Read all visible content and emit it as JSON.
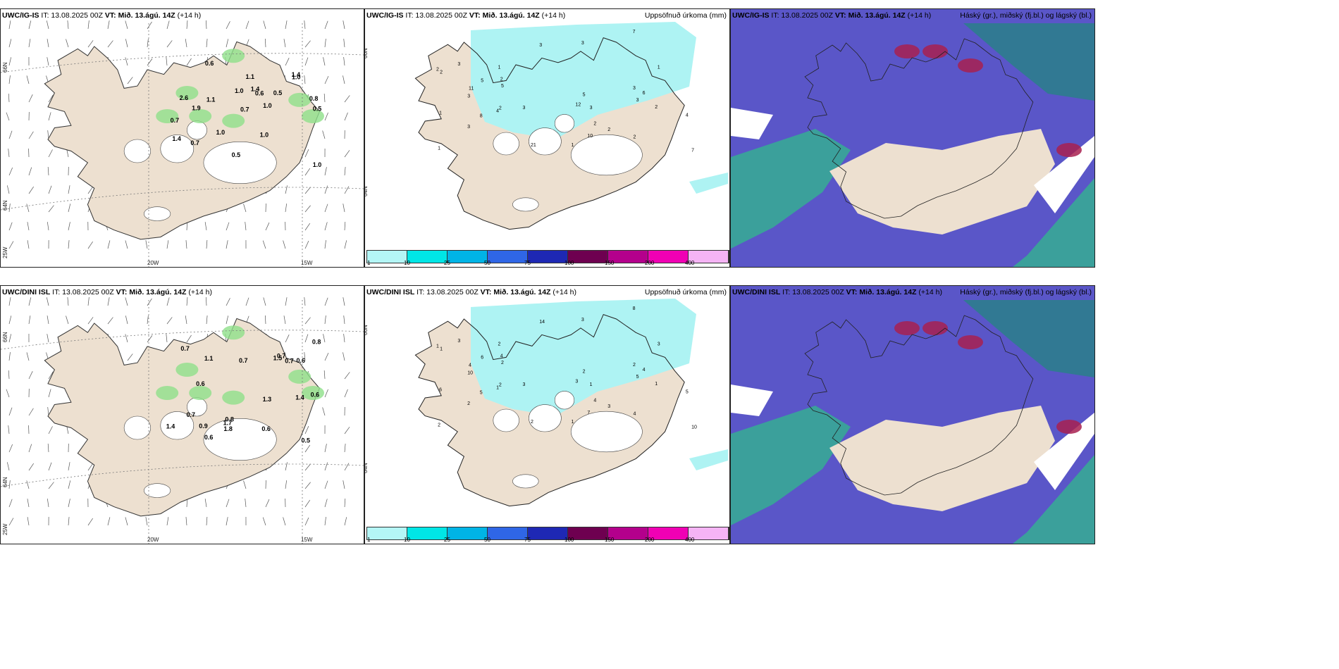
{
  "panels": [
    {
      "model": "UWC/IG-IS",
      "it": "IT: 13.08.2025 00Z",
      "vt_label": "VT:",
      "vt": "Mið. 13.ágú. 14Z",
      "lead": "(+14 h)",
      "type": "wind"
    },
    {
      "model": "UWC/IG-IS",
      "it": "IT: 13.08.2025 00Z",
      "vt_label": "VT:",
      "vt": "Mið. 13.ágú. 14Z",
      "lead": "(+14 h)",
      "type": "precip",
      "right_label": "Uppsöfnuð úrkoma (mm)"
    },
    {
      "model": "UWC/IG-IS",
      "it": "IT: 13.08.2025 00Z",
      "vt_label": "VT:",
      "vt": "Mið. 13.ágú. 14Z",
      "lead": "(+14 h)",
      "type": "cloud",
      "right_label": "Háský (gr.), miðský (fj.bl.) og lágský (bl.)"
    },
    {
      "model": "UWC/DINI ISL",
      "it": "IT: 13.08.2025 00Z",
      "vt_label": "VT:",
      "vt": "Mið. 13.ágú. 14Z",
      "lead": "(+14 h)",
      "type": "wind"
    },
    {
      "model": "UWC/DINI ISL",
      "it": "IT: 13.08.2025 00Z",
      "vt_label": "VT:",
      "vt": "Mið. 13.ágú. 14Z",
      "lead": "(+14 h)",
      "type": "precip",
      "right_label": "Uppsöfnuð úrkoma (mm)"
    },
    {
      "model": "UWC/DINI ISL",
      "it": "IT: 13.08.2025 00Z",
      "vt_label": "VT:",
      "vt": "Mið. 13.ágú. 14Z",
      "lead": "(+14 h)",
      "type": "cloud",
      "right_label": "Háský (gr.), miðský (fj.bl.) og lágský (bl.)"
    }
  ],
  "axis_labels": {
    "lat66": "66N",
    "lat64": "64N",
    "lon25": "25W",
    "lon20": "20W",
    "lon15": "15W"
  },
  "colorbar": {
    "labels": [
      "1",
      "10",
      "25",
      "50",
      "75",
      "100",
      "150",
      "200",
      "400"
    ],
    "colors": [
      "#b4f6f6",
      "#00e6e6",
      "#00b4e6",
      "#2f66e6",
      "#1e28b4",
      "#6e0050",
      "#b4008c",
      "#f000b4",
      "#f5b4f5"
    ]
  },
  "wind_values_top": [
    "0.5",
    "0.5",
    "1.1",
    "0.6",
    "2.6",
    "1.0",
    "1.0",
    "1.4",
    "1.0",
    "1.0",
    "0.7",
    "0.8",
    "0.7",
    "1.0",
    "1.9",
    "1.0",
    "1.4",
    "0.6",
    "0.7",
    "1.1",
    "1.4",
    "0.5"
  ],
  "wind_values_bottom": [
    "0.6",
    "0.7",
    "0.6",
    "1.7",
    "1.3",
    "0.6",
    "1.4",
    "0.7",
    "1.4",
    "1.8",
    "1.5",
    "0.7",
    "0.6",
    "0.5",
    "0.8",
    "0.7",
    "0.6",
    "0.8",
    "0.7",
    "1.1",
    "0.9"
  ],
  "precip_values_top": [
    "2",
    "2",
    "3",
    "1",
    "3",
    "3",
    "6",
    "7",
    "10",
    "5",
    "8",
    "3",
    "7",
    "11",
    "12",
    "5",
    "4",
    "3",
    "2",
    "1",
    "3",
    "21",
    "2",
    "4",
    "5",
    "3",
    "2",
    "1",
    "3",
    "2",
    "2",
    "1",
    "2",
    "1",
    "3"
  ],
  "precip_values_bottom": [
    "1",
    "2",
    "1",
    "1",
    "3",
    "2",
    "4",
    "8",
    "7",
    "6",
    "5",
    "14",
    "10",
    "4",
    "3",
    "2",
    "5",
    "3",
    "4",
    "6",
    "10",
    "2",
    "4",
    "1",
    "2",
    "3",
    "1",
    "2",
    "5",
    "4",
    "3",
    "2",
    "1",
    "3",
    "2"
  ],
  "colors": {
    "land": "#ede0d0",
    "sea": "#ffffff",
    "cloud_high": "#5a56c8",
    "cloud_low": "#37a896",
    "cloud_mid": "#2a7f8a",
    "precip": "#aef3f3",
    "wind_green": "#8ee08a"
  }
}
